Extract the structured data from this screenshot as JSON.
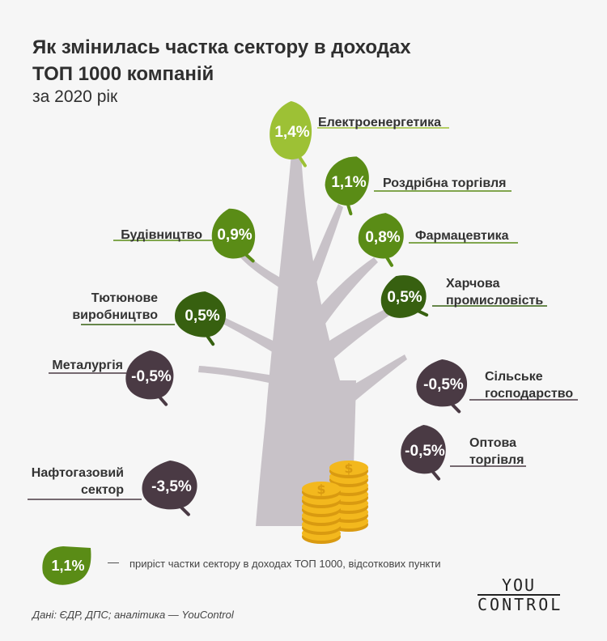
{
  "title_line1": "Як змінилась частка сектору в доходах",
  "title_line2": "ТОП 1000 компаній",
  "subtitle": "за 2020 рік",
  "legend": {
    "sample_value": "1,1%",
    "dash": "—",
    "text": "приріст частки сектору в доходах ТОП 1000, відсоткових пункти"
  },
  "source": "Дані: ЄДР, ДПС; аналітика — YouControl",
  "logo": {
    "line1": "YOU",
    "line2": "CONTROL"
  },
  "colors": {
    "light_green": "#9dc135",
    "green": "#5a8c16",
    "dark_green": "#376010",
    "negative": "#4a3a44",
    "trunk": "#c8c2c8",
    "coin": "#f3b81d"
  },
  "chart_data": {
    "type": "tree-infographic",
    "unit": "percentage points",
    "items": [
      {
        "sector": "Електроенергетика",
        "value": 1.4,
        "label": "1,4%"
      },
      {
        "sector": "Роздрібна торгівля",
        "value": 1.1,
        "label": "1,1%"
      },
      {
        "sector": "Будівництво",
        "value": 0.9,
        "label": "0,9%"
      },
      {
        "sector": "Фармацевтика",
        "value": 0.8,
        "label": "0,8%"
      },
      {
        "sector": "Харчова промисловість",
        "value": 0.5,
        "label": "0,5%"
      },
      {
        "sector": "Тютюнове виробництво",
        "value": 0.5,
        "label": "0,5%"
      },
      {
        "sector": "Металургія",
        "value": -0.5,
        "label": "-0,5%"
      },
      {
        "sector": "Сільське господарство",
        "value": -0.5,
        "label": "-0,5%"
      },
      {
        "sector": "Оптова торгівля",
        "value": -0.5,
        "label": "-0,5%"
      },
      {
        "sector": "Нафтогазовий сектор",
        "value": -3.5,
        "label": "-3,5%"
      }
    ]
  }
}
